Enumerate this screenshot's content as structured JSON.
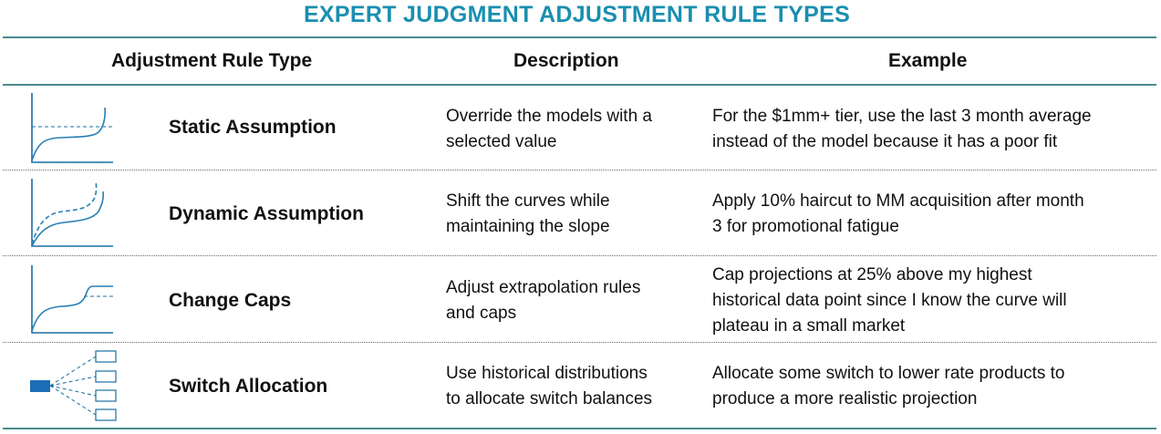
{
  "title": "EXPERT JUDGMENT ADJUSTMENT RULE TYPES",
  "headers": {
    "type": "Adjustment Rule Type",
    "description": "Description",
    "example": "Example"
  },
  "rows": [
    {
      "name": "Static Assumption",
      "icon": "static-curve-icon",
      "description": [
        "Override the models with a",
        "selected value"
      ],
      "example": [
        "For the $1mm+ tier, use the last 3 month average",
        "instead of the model because it has a poor fit"
      ]
    },
    {
      "name": "Dynamic Assumption",
      "icon": "dynamic-curve-icon",
      "description": [
        "Shift the curves while",
        "maintaining the slope"
      ],
      "example": [
        "Apply 10% haircut to MM acquisition after month",
        "3 for promotional fatigue"
      ]
    },
    {
      "name": "Change Caps",
      "icon": "capped-curve-icon",
      "description": [
        "Adjust extrapolation rules",
        "and caps"
      ],
      "example": [
        "Cap projections at 25% above my highest",
        "historical data point since I know the curve will",
        "plateau in a small market"
      ]
    },
    {
      "name": "Switch Allocation",
      "icon": "allocation-tree-icon",
      "description": [
        "Use historical distributions",
        "to allocate switch balances"
      ],
      "example": [
        "Allocate some switch to lower rate products to",
        "produce a more realistic projection"
      ]
    }
  ],
  "colors": {
    "title": "#1a8fb0",
    "rule": "#4a8a8f",
    "icon": "#2a7fb5",
    "allocation_block": "#1b6fb8"
  }
}
